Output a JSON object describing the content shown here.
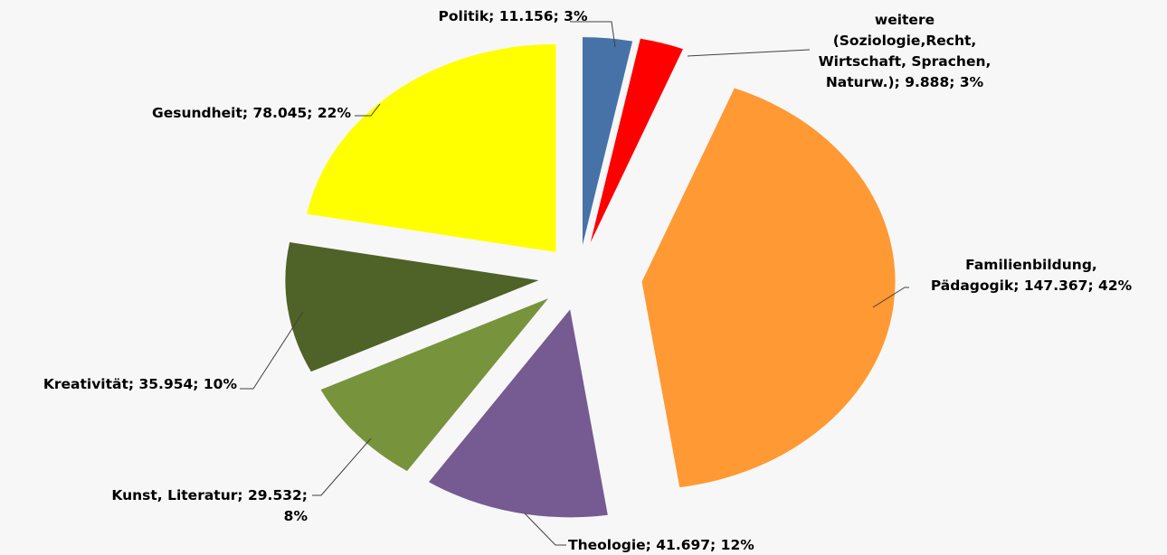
{
  "chart_data": {
    "type": "pie",
    "categories": [
      "Politik",
      "weitere (Soziologie,Recht, Wirtschaft, Sprachen, Naturw.)",
      "Familienbildung, Pädagogik",
      "Theologie",
      "Kunst, Literatur",
      "Kreativität",
      "Gesundheit"
    ],
    "values": [
      11156,
      9888,
      147367,
      41697,
      29532,
      35954,
      78045
    ],
    "value_labels": [
      [
        "Politik; 11.156; 3%"
      ],
      [
        "weitere",
        "(Soziologie,Recht,",
        "Wirtschaft, Sprachen,",
        "Naturw.); 9.888; 3%"
      ],
      [
        "Familienbildung,",
        "Pädagogik; 147.367; 42%"
      ],
      [
        "Theologie; 41.697; 12%"
      ],
      [
        "Kunst, Literatur; 29.532;",
        "8%"
      ],
      [
        "Kreativität; 35.954; 10%"
      ],
      [
        "Gesundheit; 78.045; 22%"
      ]
    ],
    "colors": [
      "#4672a8",
      "#ff0000",
      "#ff9933",
      "#765a92",
      "#77933c",
      "#4f6228",
      "#ffff00"
    ]
  }
}
